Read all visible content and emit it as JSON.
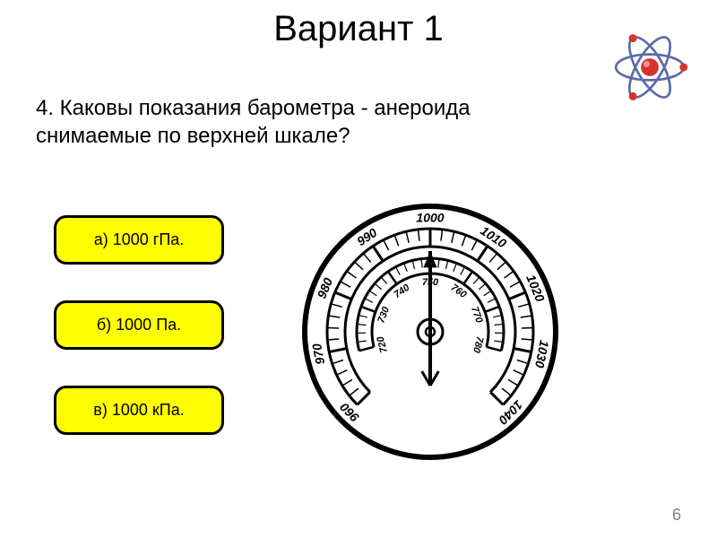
{
  "title": "Вариант 1",
  "question": "4. Каковы показания барометра - анероида снимаемые по верхней шкале?",
  "answers": [
    {
      "label": "а) 1000 гПа."
    },
    {
      "label": "б) 1000 Па."
    },
    {
      "label": "в) 1000 кПа."
    }
  ],
  "page_number": "6",
  "barometer": {
    "outer_scale": [
      "960",
      "970",
      "980",
      "990",
      "1000",
      "1010",
      "1020",
      "1030",
      "1040"
    ],
    "inner_scale": [
      "720",
      "730",
      "740",
      "750",
      "760",
      "770",
      "780"
    ],
    "needle_angle_deg": 0,
    "stroke_color": "#000000",
    "fill_bg": "#ffffff",
    "scale_start_deg": -135,
    "scale_end_deg": 135
  },
  "atom_icon": {
    "nucleus_color": "#d4342c",
    "orbit_color": "#5a6ba8",
    "electron_color": "#d4342c"
  },
  "colors": {
    "answer_bg": "#ffff00",
    "answer_border": "#000000",
    "text": "#000000",
    "page_num": "#808080",
    "background": "#ffffff"
  }
}
